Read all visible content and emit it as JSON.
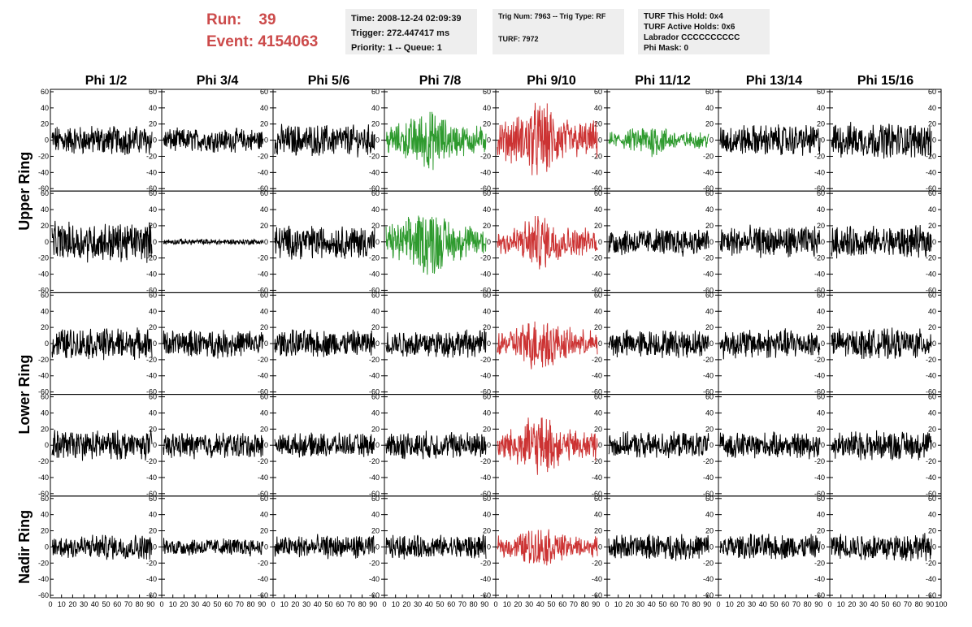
{
  "header": {
    "run_label": "Run:",
    "run_value": "39",
    "event_label": "Event:",
    "event_value": "4154063",
    "time_line": "Time: 2008-12-24 02:09:39",
    "trigger_line": "Trigger: 272.447417 ms",
    "priority_line": "Priority: 1 -- Queue: 1",
    "trig_line": "Trig Num: 7963 -- Trig Type: RF",
    "turf_line": "TURF: 7972",
    "turf_hold_line": "TURF This Hold: 0x4",
    "turf_active_line": "TURF Active Holds: 0x6",
    "labrador_line": "Labrador CCCCCCCCCC",
    "phi_mask_line": "Phi Mask: 0"
  },
  "colors": {
    "normal": "#000000",
    "green": "#2e9a2e",
    "red": "#cc3333",
    "header_red": "#cc4b4b",
    "info_box_bg": "#eeeeee"
  },
  "chart_data": {
    "type": "line",
    "columns": [
      "Phi 1/2",
      "Phi 3/4",
      "Phi 5/6",
      "Phi 7/8",
      "Phi 9/10",
      "Phi 11/12",
      "Phi 13/14",
      "Phi 15/16"
    ],
    "rows": [
      "Upper Ring",
      "Upper Ring",
      "Lower Ring",
      "Lower Ring",
      "Nadir Ring"
    ],
    "row_group_labels": [
      "Upper Ring",
      "Lower Ring",
      "Nadir Ring"
    ],
    "ylim": [
      -63,
      63
    ],
    "yticks": [
      -60,
      -40,
      -20,
      0,
      20,
      40,
      60
    ],
    "xlim": [
      0,
      100
    ],
    "xtick_labels": [
      "0",
      "10",
      "20",
      "30",
      "40",
      "50",
      "60",
      "70",
      "80",
      "90",
      "100"
    ],
    "panel_color": [
      [
        "normal",
        "normal",
        "normal",
        "green",
        "red",
        "green",
        "normal",
        "normal"
      ],
      [
        "normal",
        "normal",
        "normal",
        "green",
        "red",
        "normal",
        "normal",
        "normal"
      ],
      [
        "normal",
        "normal",
        "normal",
        "normal",
        "red",
        "normal",
        "normal",
        "normal"
      ],
      [
        "normal",
        "normal",
        "normal",
        "normal",
        "red",
        "normal",
        "normal",
        "normal"
      ],
      [
        "normal",
        "normal",
        "normal",
        "normal",
        "red",
        "normal",
        "normal",
        "normal"
      ]
    ],
    "panel_amplitude": [
      [
        15,
        12,
        16,
        22,
        28,
        12,
        16,
        18
      ],
      [
        20,
        3,
        17,
        25,
        20,
        14,
        16,
        16
      ],
      [
        16,
        14,
        14,
        14,
        20,
        14,
        15,
        15
      ],
      [
        15,
        13,
        12,
        14,
        22,
        13,
        13,
        15
      ],
      [
        13,
        9,
        12,
        12,
        15,
        13,
        13,
        14
      ]
    ],
    "samples_per_trace": 260
  }
}
